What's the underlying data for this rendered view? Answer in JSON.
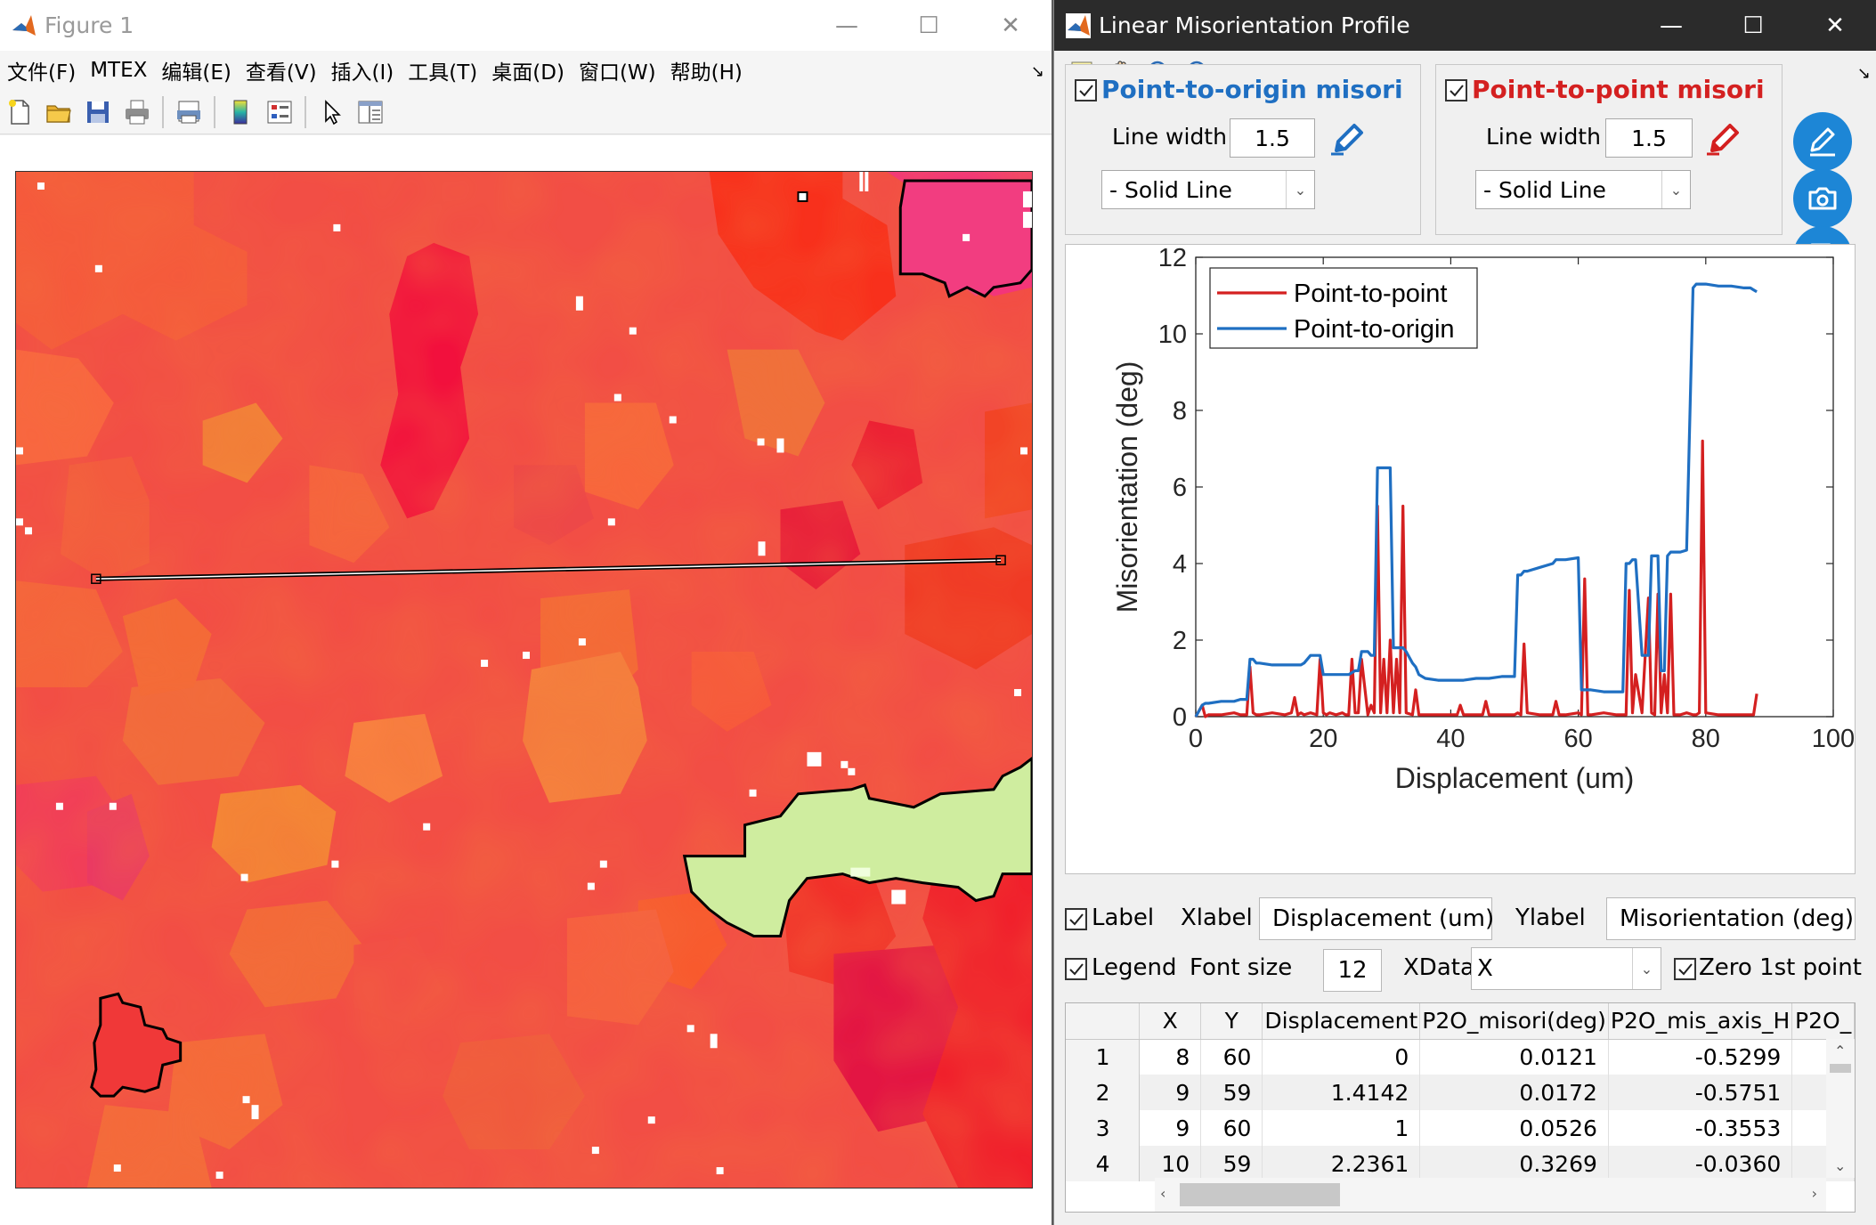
{
  "figure_window": {
    "title": "Figure 1",
    "caption": {
      "minimize": "—",
      "maximize": "☐",
      "close": "✕"
    },
    "menu": [
      "文件(F)",
      "MTEX",
      "编辑(E)",
      "查看(V)",
      "插入(I)",
      "工具(T)",
      "桌面(D)",
      "窗口(W)",
      "帮助(H)"
    ],
    "toolbar_icons": [
      "new-file-icon",
      "open-folder-icon",
      "save-icon",
      "print-icon",
      "print-preview-icon",
      "colorbar-icon",
      "legend-icon",
      "pointer-icon",
      "property-editor-icon"
    ]
  },
  "profile_window": {
    "title": "Linear Misorientation Profile",
    "caption": {
      "minimize": "—",
      "maximize": "☐",
      "close": "✕"
    },
    "toolbar_icons": [
      "data-cursor-icon",
      "pan-hand-icon",
      "zoom-in-icon",
      "zoom-out-icon"
    ],
    "p2o_panel": {
      "title": "Point-to-origin misori",
      "checked": true,
      "color": "#1f6fc2",
      "line_width_label": "Line width",
      "line_width": "1.5",
      "line_style": "-   Solid Line"
    },
    "p2p_panel": {
      "title": "Point-to-point misori",
      "checked": true,
      "color": "#d42020",
      "line_width_label": "Line width",
      "line_width": "1.5",
      "line_style": "-   Solid Line"
    },
    "side_buttons": [
      "edit-plot-icon",
      "camera-icon",
      "save-disk-icon"
    ],
    "controls": {
      "label_check": "Label",
      "xlabel_label": "Xlabel",
      "xlabel_value": "Displacement (um)",
      "ylabel_label": "Ylabel",
      "ylabel_value": "Misorientation (deg)",
      "legend_check": "Legend",
      "font_size_label": "Font size",
      "font_size": "12",
      "xdata_label": "XData",
      "xdata_value": "X",
      "zero_first_check": "Zero 1st point"
    },
    "table": {
      "columns": [
        "",
        "X",
        "Y",
        "Displacement",
        "P2O_misori(deg)",
        "P2O_mis_axis_H",
        "P2O_"
      ],
      "rows": [
        [
          "1",
          "8",
          "60",
          "0",
          "0.0121",
          "-0.5299",
          ""
        ],
        [
          "2",
          "9",
          "59",
          "1.4142",
          "0.0172",
          "-0.5751",
          ""
        ],
        [
          "3",
          "9",
          "60",
          "1",
          "0.0526",
          "-0.3553",
          ""
        ],
        [
          "4",
          "10",
          "59",
          "2.2361",
          "0.3269",
          "-0.0360",
          ""
        ]
      ]
    }
  },
  "chart_data": {
    "type": "line",
    "xlabel": "Displacement (um)",
    "ylabel": "Misorientation (deg)",
    "xlim": [
      0,
      100
    ],
    "ylim": [
      0,
      12
    ],
    "xticks": [
      0,
      20,
      40,
      60,
      80,
      100
    ],
    "yticks": [
      0,
      2,
      4,
      6,
      8,
      10,
      12
    ],
    "legend_position": "top-left",
    "series": [
      {
        "name": "Point-to-point",
        "color": "#d42020",
        "x": [
          0,
          1,
          1.5,
          2,
          4,
          6,
          7,
          8,
          8.5,
          9,
          9.5,
          10,
          12,
          14,
          15,
          15.5,
          16,
          16.5,
          17,
          18,
          19,
          19.5,
          20,
          20.5,
          21,
          22,
          23,
          23.5,
          24,
          24.5,
          25,
          25.5,
          26,
          27,
          27.5,
          28,
          28.5,
          29,
          29.5,
          30,
          30.5,
          31,
          31.5,
          32,
          32.5,
          33,
          34,
          34.5,
          35,
          36,
          38,
          40,
          41,
          41.5,
          42,
          44,
          45,
          45.5,
          46,
          48,
          50,
          50.5,
          51,
          51.5,
          52,
          54,
          56,
          56.5,
          57,
          58,
          60,
          60.5,
          61,
          61.5,
          62,
          64,
          66,
          67,
          67.5,
          68,
          68.5,
          69,
          70,
          71,
          71.5,
          72,
          72.5,
          73,
          73.5,
          74,
          74.5,
          75,
          76,
          77,
          78,
          78.5,
          79,
          79.5,
          80,
          82,
          84,
          86,
          87,
          87.5,
          88
        ],
        "y": [
          0,
          0.3,
          0,
          0.05,
          0.05,
          0.1,
          0.05,
          0.05,
          1.3,
          0.1,
          0.05,
          0.05,
          0.1,
          0.05,
          0.1,
          0.5,
          0.05,
          0.1,
          0.05,
          0.1,
          0.05,
          1.5,
          0.1,
          0.05,
          0.1,
          0.05,
          0.1,
          0.05,
          0.05,
          1.5,
          0.1,
          0.1,
          1.5,
          0.05,
          0.3,
          0.1,
          5.5,
          0.1,
          1.5,
          0.1,
          2.0,
          0.1,
          1.5,
          0.1,
          5.5,
          0.1,
          0.05,
          0.7,
          0.05,
          0.05,
          0.05,
          0.05,
          0.05,
          0.3,
          0.05,
          0.05,
          0.05,
          0.4,
          0.05,
          0.05,
          0.05,
          0.1,
          0.05,
          1.9,
          0.1,
          0.05,
          0.05,
          0.4,
          0.05,
          0.05,
          0.1,
          0.05,
          3.6,
          0.05,
          0.05,
          0.1,
          0.05,
          0.05,
          0.05,
          3.3,
          0.1,
          1.1,
          0.1,
          3.1,
          0.1,
          0.05,
          3.2,
          0.1,
          1.1,
          0.1,
          3.2,
          0.05,
          0.05,
          0.1,
          0.05,
          0.05,
          0.1,
          7.2,
          0.1,
          0.05,
          0.05,
          0.05,
          0.05,
          0.05,
          0.6
        ],
        "comment_free_note": ""
      },
      {
        "name": "Point-to-origin",
        "color": "#1f6fc2",
        "x": [
          0,
          1,
          1.5,
          2,
          4,
          6,
          7,
          8,
          8.5,
          9,
          9.5,
          10,
          12,
          14,
          15,
          15.5,
          16,
          16.5,
          17,
          18,
          19,
          19.5,
          20,
          20.5,
          21,
          22,
          23,
          24,
          25,
          25.5,
          26,
          27,
          27.5,
          28,
          28.5,
          29,
          29.5,
          30,
          30.5,
          31,
          31.5,
          32,
          32.5,
          33,
          34,
          34.5,
          35,
          36,
          38,
          40,
          42,
          44,
          46,
          48,
          50,
          50.5,
          51,
          51.5,
          52,
          54,
          56,
          56.5,
          57,
          58,
          60,
          60.5,
          61,
          61.5,
          62,
          64,
          66,
          67,
          67.5,
          68,
          68.5,
          69,
          70,
          71,
          71.5,
          72,
          72.5,
          73,
          73.5,
          74,
          74.5,
          75,
          76,
          77,
          78,
          78.5,
          79,
          79.5,
          80,
          82,
          84,
          86,
          87,
          87.5,
          88
        ],
        "y": [
          0,
          0.3,
          0.35,
          0.35,
          0.4,
          0.4,
          0.45,
          0.45,
          1.5,
          1.5,
          1.4,
          1.4,
          1.35,
          1.35,
          1.35,
          1.35,
          1.35,
          1.35,
          1.4,
          1.6,
          1.6,
          1.6,
          1.1,
          1.1,
          1.1,
          1.1,
          1.1,
          1.1,
          1.2,
          1.2,
          1.7,
          1.7,
          1.6,
          1.6,
          6.5,
          6.5,
          6.5,
          6.5,
          6.5,
          1.8,
          1.8,
          1.8,
          1.8,
          1.7,
          1.4,
          1.3,
          1.1,
          1.0,
          0.95,
          0.95,
          0.95,
          1.0,
          1.0,
          1.05,
          1.05,
          3.7,
          3.7,
          3.8,
          3.8,
          3.9,
          4.0,
          4.1,
          4.1,
          4.1,
          4.15,
          0.7,
          0.7,
          0.7,
          0.7,
          0.65,
          0.65,
          0.65,
          4.0,
          4.0,
          4.1,
          4.1,
          1.6,
          1.6,
          4.2,
          4.2,
          4.2,
          1.2,
          1.2,
          4.2,
          4.3,
          4.3,
          4.3,
          4.35,
          11.2,
          11.3,
          11.3,
          11.3,
          11.3,
          11.25,
          11.25,
          11.2,
          11.2,
          11.15,
          11.1
        ]
      }
    ]
  }
}
